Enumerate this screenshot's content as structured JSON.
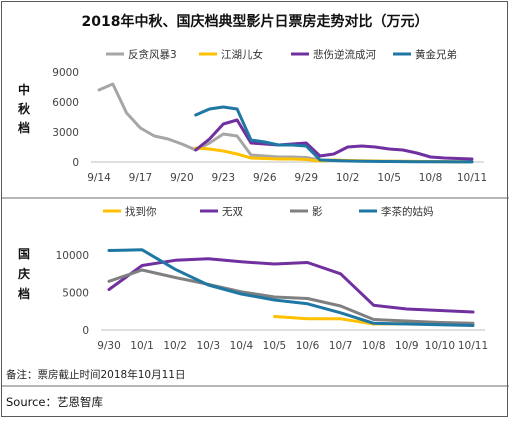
{
  "title": "2018年中秋、国庆档典型影片日票房走势对比（万元）",
  "note": "备注：票房截止时间2018年10月11日",
  "source": "Source：艺恩智库",
  "chart_data": [
    {
      "type": "line",
      "section_label": "中秋档",
      "categories": [
        "9/14",
        "9/15",
        "9/16",
        "9/17",
        "9/18",
        "9/19",
        "9/20",
        "9/21",
        "9/22",
        "9/23",
        "9/24",
        "9/25",
        "9/26",
        "9/27",
        "9/28",
        "9/29",
        "9/30",
        "10/1",
        "10/2",
        "10/3",
        "10/4",
        "10/5",
        "10/6",
        "10/7",
        "10/8",
        "10/9",
        "10/10",
        "10/11"
      ],
      "tick_labels": [
        "9/14",
        "9/17",
        "9/20",
        "9/23",
        "9/26",
        "9/29",
        "10/2",
        "10/5",
        "10/8",
        "10/11"
      ],
      "yticks": [
        0,
        3000,
        6000,
        9000
      ],
      "ylim": [
        0,
        9000
      ],
      "series": [
        {
          "name": "反贪风暴3",
          "color": "#a6a6a6",
          "values": [
            7200,
            7800,
            4900,
            3400,
            2600,
            2300,
            1800,
            1200,
            1900,
            2800,
            2600,
            700,
            600,
            500,
            500,
            450,
            200,
            150,
            100,
            100,
            80,
            80,
            60,
            50,
            40,
            30,
            20,
            20
          ]
        },
        {
          "name": "江湖儿女",
          "color": "#ffc000",
          "values": [
            null,
            null,
            null,
            null,
            null,
            null,
            null,
            1400,
            1300,
            1100,
            800,
            400,
            350,
            300,
            300,
            250,
            100,
            200,
            150,
            120,
            100,
            80,
            70,
            60,
            50,
            40,
            30,
            20
          ]
        },
        {
          "name": "悲伤逆流成河",
          "color": "#7030a0",
          "values": [
            null,
            null,
            null,
            null,
            null,
            null,
            null,
            1200,
            2300,
            3800,
            4200,
            1900,
            1800,
            1700,
            1800,
            1900,
            600,
            800,
            1500,
            1600,
            1500,
            1300,
            1200,
            900,
            500,
            400,
            350,
            300
          ]
        },
        {
          "name": "黄金兄弟",
          "color": "#1f77a4",
          "values": [
            null,
            null,
            null,
            null,
            null,
            null,
            null,
            4700,
            5300,
            5500,
            5300,
            2200,
            2000,
            1700,
            1700,
            1600,
            200,
            150,
            100,
            80,
            60,
            50,
            40,
            30,
            20,
            20,
            10,
            10
          ]
        }
      ]
    },
    {
      "type": "line",
      "section_label": "国庆档",
      "categories": [
        "9/30",
        "10/1",
        "10/2",
        "10/3",
        "10/4",
        "10/5",
        "10/6",
        "10/7",
        "10/8",
        "10/9",
        "10/10",
        "10/11"
      ],
      "tick_labels": [
        "9/30",
        "10/1",
        "10/2",
        "10/3",
        "10/4",
        "10/5",
        "10/6",
        "10/7",
        "10/8",
        "10/9",
        "10/10",
        "10/11"
      ],
      "yticks": [
        0,
        5000,
        10000
      ],
      "ylim": [
        0,
        12000
      ],
      "series": [
        {
          "name": "找到你",
          "color": "#ffc000",
          "values": [
            null,
            null,
            null,
            null,
            null,
            1800,
            1500,
            1500,
            800,
            850,
            800,
            700
          ]
        },
        {
          "name": "无双",
          "color": "#7030a0",
          "values": [
            5400,
            8600,
            9300,
            9500,
            9100,
            8800,
            9000,
            7500,
            3300,
            2800,
            2600,
            2400
          ]
        },
        {
          "name": "影",
          "color": "#808080",
          "values": [
            6500,
            8000,
            7000,
            6100,
            5100,
            4400,
            4200,
            3200,
            1400,
            1200,
            1000,
            900
          ]
        },
        {
          "name": "李茶的姑妈",
          "color": "#1f77a4",
          "values": [
            10600,
            10700,
            8100,
            6000,
            4800,
            4000,
            3500,
            2300,
            900,
            800,
            700,
            600
          ]
        }
      ]
    }
  ]
}
